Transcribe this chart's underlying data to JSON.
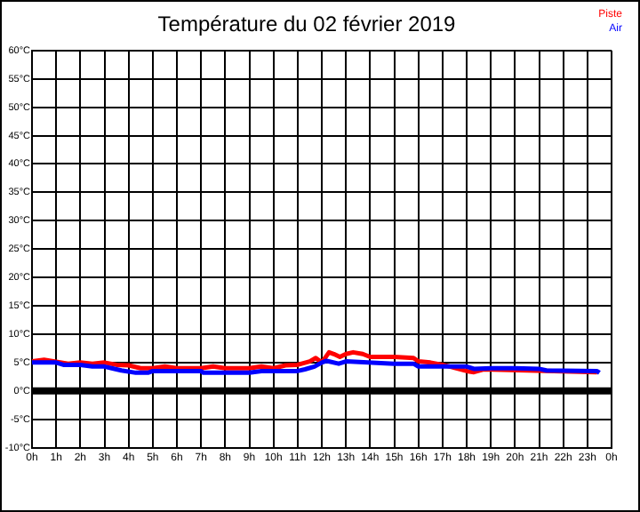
{
  "chart_data": {
    "type": "line",
    "title": "Température du 02 février 2019",
    "legend": "top right",
    "grid": true,
    "marker": "none",
    "line_style": "solid",
    "xlim": [
      "2019-02-02T00:00",
      "2019-02-03T00:00"
    ],
    "xticks": [
      {
        "value": "2019-02-02T00:00",
        "label": "0h"
      },
      {
        "value": "2019-02-02T01:00",
        "label": "1h"
      },
      {
        "value": "2019-02-02T02:00",
        "label": "2h"
      },
      {
        "value": "2019-02-02T03:00",
        "label": "3h"
      },
      {
        "value": "2019-02-02T04:00",
        "label": "4h"
      },
      {
        "value": "2019-02-02T05:00",
        "label": "5h"
      },
      {
        "value": "2019-02-02T06:00",
        "label": "6h"
      },
      {
        "value": "2019-02-02T07:00",
        "label": "7h"
      },
      {
        "value": "2019-02-02T08:00",
        "label": "8h"
      },
      {
        "value": "2019-02-02T09:00",
        "label": "9h"
      },
      {
        "value": "2019-02-02T10:00",
        "label": "10h"
      },
      {
        "value": "2019-02-02T11:00",
        "label": "11h"
      },
      {
        "value": "2019-02-02T12:00",
        "label": "12h"
      },
      {
        "value": "2019-02-02T13:00",
        "label": "13h"
      },
      {
        "value": "2019-02-02T14:00",
        "label": "14h"
      },
      {
        "value": "2019-02-02T15:00",
        "label": "15h"
      },
      {
        "value": "2019-02-02T16:00",
        "label": "16h"
      },
      {
        "value": "2019-02-02T17:00",
        "label": "17h"
      },
      {
        "value": "2019-02-02T18:00",
        "label": "18h"
      },
      {
        "value": "2019-02-02T19:00",
        "label": "19h"
      },
      {
        "value": "2019-02-02T20:00",
        "label": "20h"
      },
      {
        "value": "2019-02-02T21:00",
        "label": "21h"
      },
      {
        "value": "2019-02-02T22:00",
        "label": "22h"
      },
      {
        "value": "2019-02-02T23:00",
        "label": "23h"
      },
      {
        "value": "2019-02-03T00:00",
        "label": "0h"
      }
    ],
    "ylim": [
      -10,
      60
    ],
    "yticks": [
      {
        "value": -10,
        "label": "-10°C"
      },
      {
        "value": -5,
        "label": "-5°C"
      },
      {
        "value": 0,
        "label": "0°C"
      },
      {
        "value": 5,
        "label": "5°C"
      },
      {
        "value": 10,
        "label": "10°C"
      },
      {
        "value": 15,
        "label": "15°C"
      },
      {
        "value": 20,
        "label": "20°C"
      },
      {
        "value": 25,
        "label": "25°C"
      },
      {
        "value": 30,
        "label": "30°C"
      },
      {
        "value": 35,
        "label": "35°C"
      },
      {
        "value": 40,
        "label": "40°C"
      },
      {
        "value": 45,
        "label": "45°C"
      },
      {
        "value": 50,
        "label": "50°C"
      },
      {
        "value": 55,
        "label": "55°C"
      },
      {
        "value": 60,
        "label": "60°C"
      }
    ],
    "ref_lines": [
      {
        "axis": "y",
        "value": 0,
        "color": "#000000"
      }
    ],
    "series": [
      {
        "name": "Piste",
        "color": "#ff0000",
        "x": [
          "2019-02-02T00:00",
          "2019-02-02T00:30",
          "2019-02-02T01:30",
          "2019-02-02T02:00",
          "2019-02-02T02:30",
          "2019-02-02T03:00",
          "2019-02-02T03:30",
          "2019-02-02T04:00",
          "2019-02-02T04:30",
          "2019-02-02T05:00",
          "2019-02-02T05:30",
          "2019-02-02T06:00",
          "2019-02-02T06:30",
          "2019-02-02T07:00",
          "2019-02-02T07:30",
          "2019-02-02T08:00",
          "2019-02-02T08:30",
          "2019-02-02T09:00",
          "2019-02-02T09:30",
          "2019-02-02T10:00",
          "2019-02-02T10:30",
          "2019-02-02T11:00",
          "2019-02-02T11:30",
          "2019-02-02T11:45",
          "2019-02-02T12:00",
          "2019-02-02T12:18",
          "2019-02-02T12:30",
          "2019-02-02T12:45",
          "2019-02-02T13:00",
          "2019-02-02T13:18",
          "2019-02-02T13:42",
          "2019-02-02T14:00",
          "2019-02-02T15:00",
          "2019-02-02T15:48",
          "2019-02-02T16:00",
          "2019-02-02T16:30",
          "2019-02-02T17:00",
          "2019-02-02T17:18",
          "2019-02-02T18:00",
          "2019-02-02T18:18",
          "2019-02-02T18:42",
          "2019-02-02T19:00",
          "2019-02-02T20:00",
          "2019-02-02T21:00",
          "2019-02-02T22:00",
          "2019-02-02T23:00",
          "2019-02-02T23:24"
        ],
        "values": [
          5.2,
          5.5,
          4.8,
          5,
          4.8,
          5,
          4.6,
          4.5,
          4,
          4,
          4.3,
          4,
          4,
          4,
          4.3,
          4,
          4,
          4,
          4.3,
          4,
          4.5,
          4.6,
          5.2,
          5.8,
          5,
          6.8,
          6.5,
          6,
          6.5,
          6.8,
          6.5,
          6,
          6,
          5.8,
          5.2,
          5,
          4.6,
          4.3,
          3.5,
          3.3,
          3.8,
          null,
          null,
          null,
          null,
          null,
          3.3
        ]
      },
      {
        "name": "Air",
        "color": "#0000ff",
        "x": [
          "2019-02-02T00:00",
          "2019-02-02T01:00",
          "2019-02-02T01:18",
          "2019-02-02T02:00",
          "2019-02-02T02:30",
          "2019-02-02T03:00",
          "2019-02-02T03:18",
          "2019-02-02T03:42",
          "2019-02-02T04:18",
          "2019-02-02T04:48",
          "2019-02-02T05:00",
          "2019-02-02T07:00",
          "2019-02-02T07:06",
          "2019-02-02T09:00",
          "2019-02-02T09:30",
          "2019-02-02T11:00",
          "2019-02-02T11:18",
          "2019-02-02T11:42",
          "2019-02-02T12:00",
          "2019-02-02T12:12",
          "2019-02-02T12:42",
          "2019-02-02T13:00",
          "2019-02-02T15:00",
          "2019-02-02T15:48",
          "2019-02-02T16:00",
          "2019-02-02T18:00",
          "2019-02-02T18:18",
          "2019-02-02T19:00",
          "2019-02-02T20:00",
          "2019-02-02T21:00",
          "2019-02-02T21:18",
          "2019-02-02T23:24",
          "2019-02-02T23:30"
        ],
        "values": [
          5,
          5,
          4.6,
          4.6,
          4.3,
          4.3,
          4,
          3.6,
          3.2,
          3.2,
          3.5,
          3.5,
          3.2,
          3.2,
          3.5,
          3.5,
          3.8,
          4.3,
          5,
          5.3,
          4.8,
          5.2,
          4.8,
          4.8,
          4.3,
          4.3,
          3.9,
          4,
          4,
          3.9,
          3.6,
          3.5,
          3.2
        ]
      }
    ]
  }
}
